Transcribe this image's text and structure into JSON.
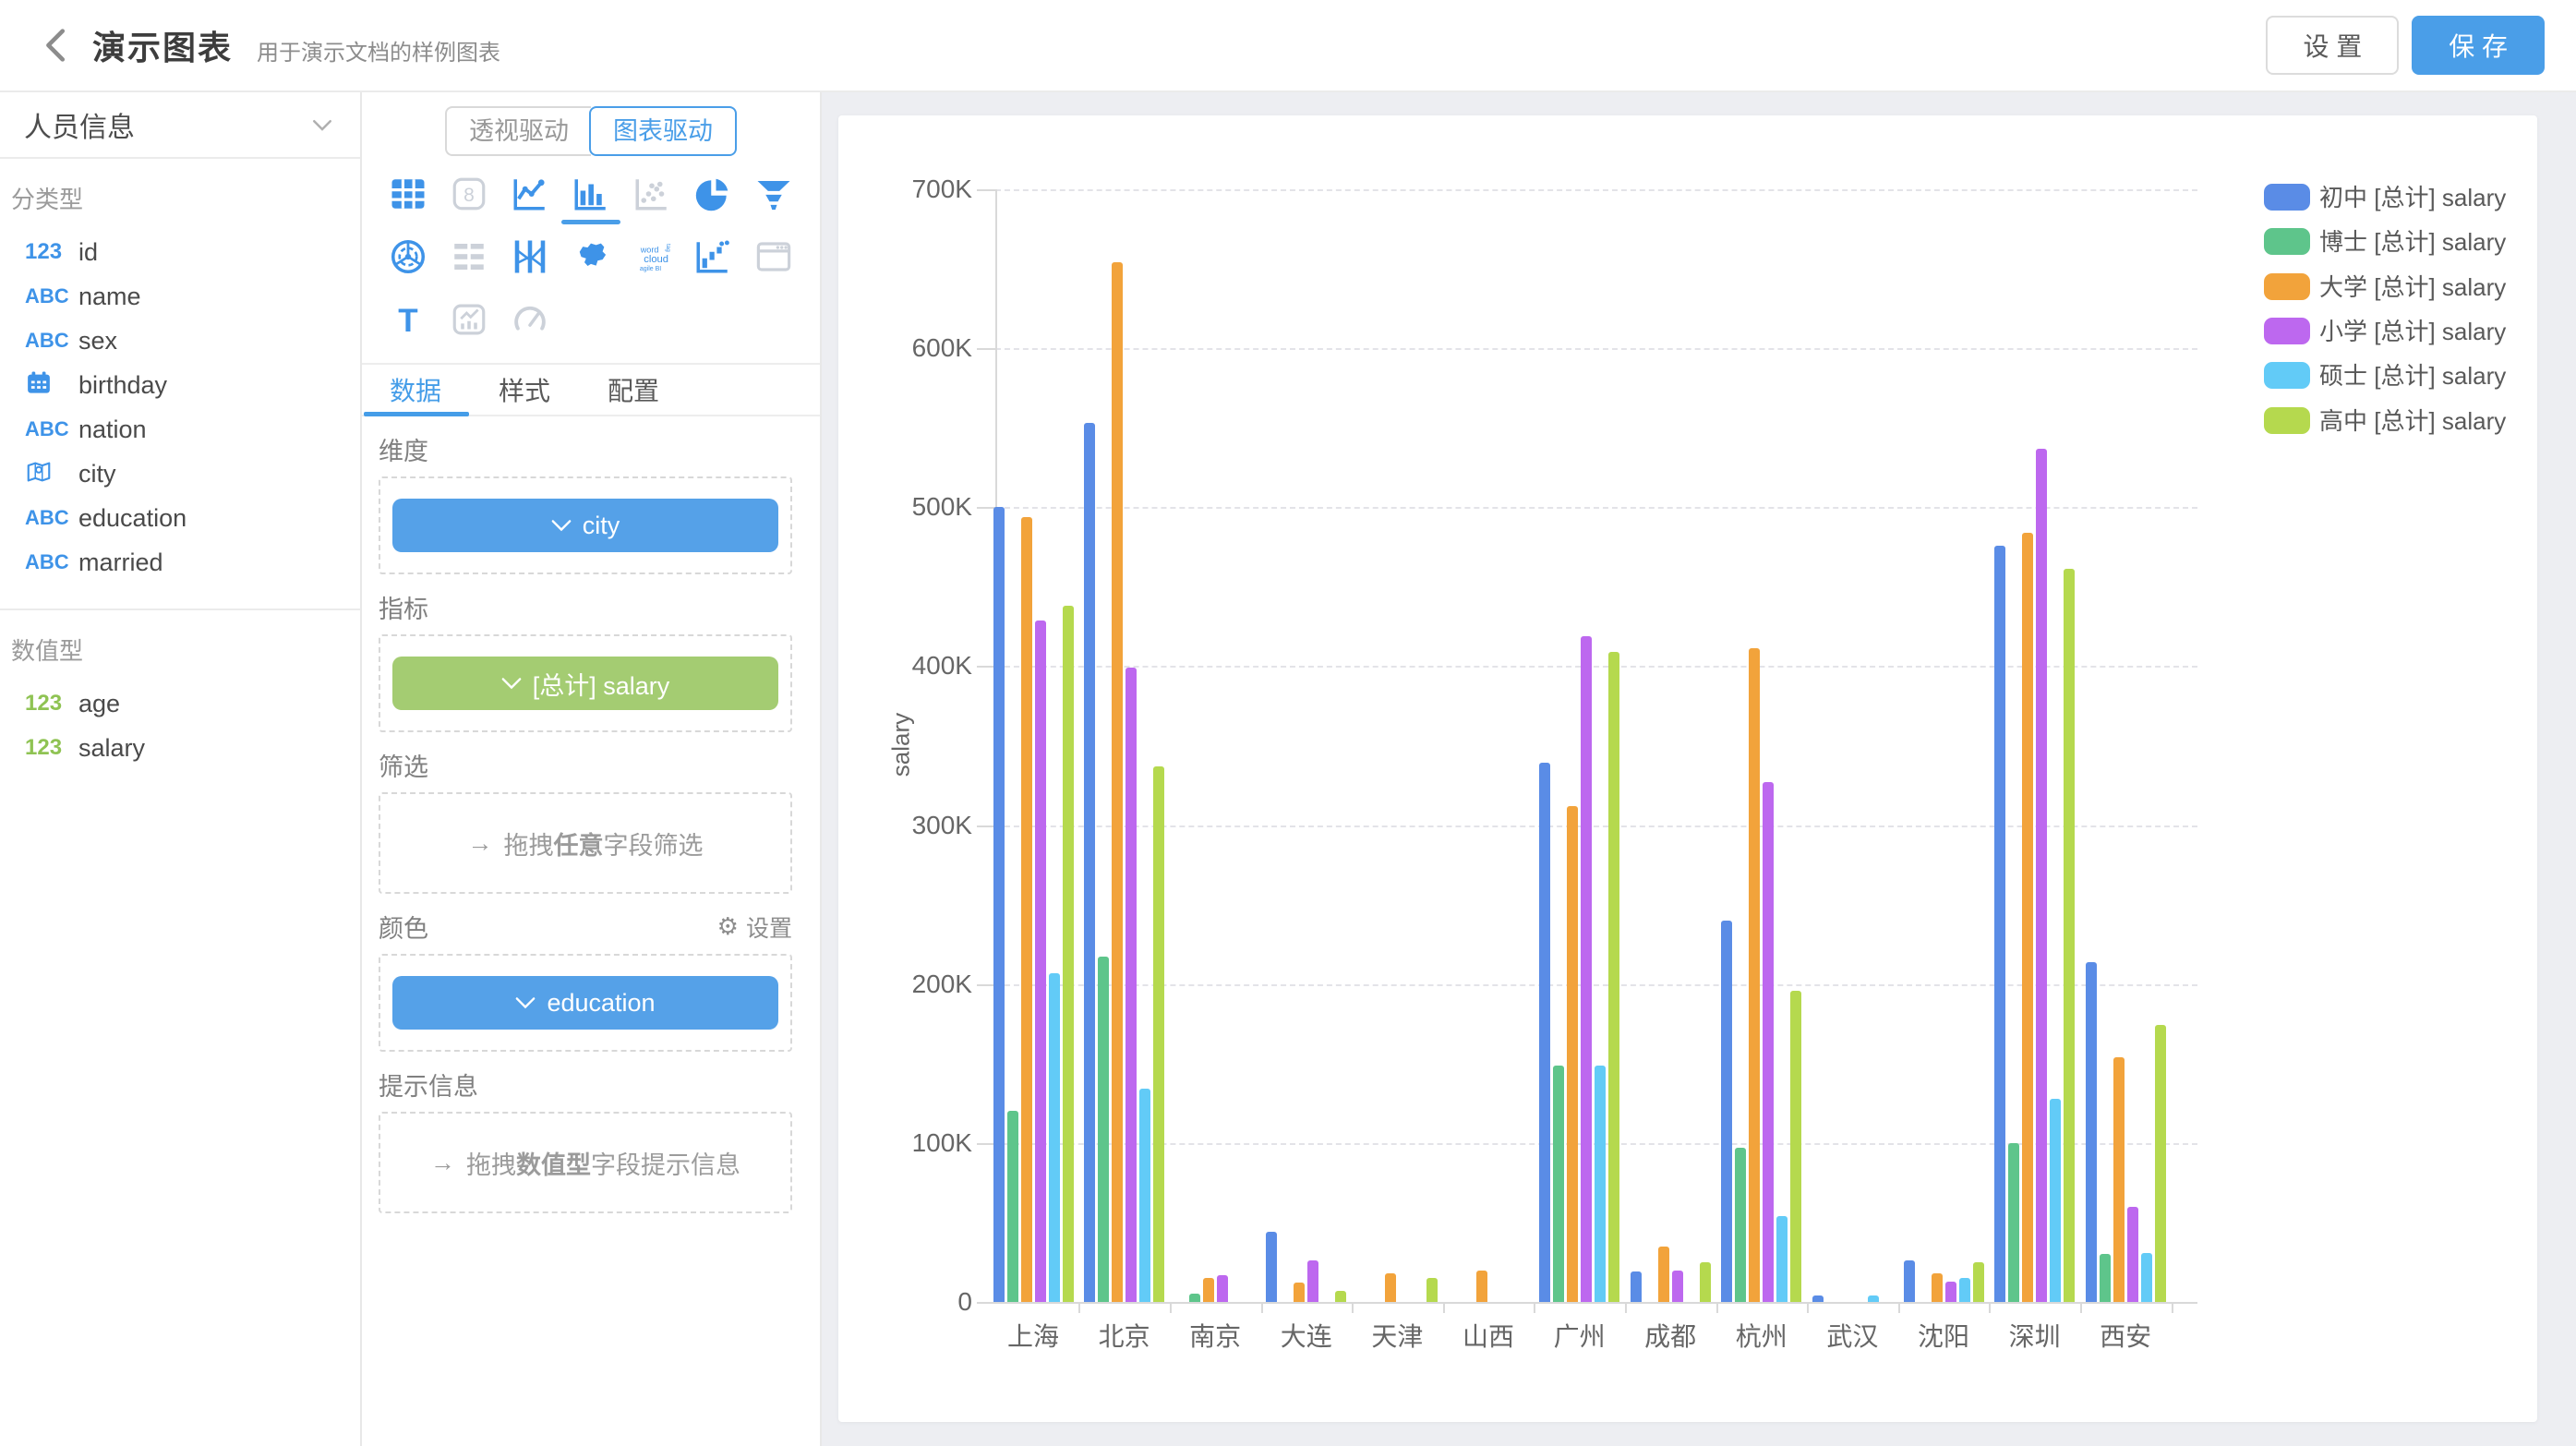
{
  "header": {
    "title": "演示图表",
    "subtitle": "用于演示文档的样例图表",
    "settings_label": "设 置",
    "save_label": "保 存",
    "accent_color": "#4a9ee8"
  },
  "sidebar": {
    "dataset_name": "人员信息",
    "categorical": {
      "title": "分类型",
      "fields": [
        {
          "badge": "123",
          "badge_style": "num-blue",
          "name": "id"
        },
        {
          "badge": "ABC",
          "badge_style": "abc",
          "name": "name"
        },
        {
          "badge": "ABC",
          "badge_style": "abc",
          "name": "sex"
        },
        {
          "badge": "calendar-icon",
          "badge_style": "icon",
          "name": "birthday"
        },
        {
          "badge": "ABC",
          "badge_style": "abc",
          "name": "nation"
        },
        {
          "badge": "map-pin-icon",
          "badge_style": "icon",
          "name": "city"
        },
        {
          "badge": "ABC",
          "badge_style": "abc",
          "name": "education"
        },
        {
          "badge": "ABC",
          "badge_style": "abc",
          "name": "married"
        }
      ]
    },
    "numeric": {
      "title": "数值型",
      "fields": [
        {
          "badge": "123",
          "badge_style": "num-green",
          "name": "age"
        },
        {
          "badge": "123",
          "badge_style": "num-green",
          "name": "salary"
        }
      ]
    }
  },
  "panel": {
    "driver_tabs": [
      {
        "label": "透视驱动",
        "active": false
      },
      {
        "label": "图表驱动",
        "active": true
      }
    ],
    "chart_types": [
      {
        "name": "table",
        "state": "active"
      },
      {
        "name": "indicator-card",
        "state": "disabled"
      },
      {
        "name": "line",
        "state": "active"
      },
      {
        "name": "bar",
        "state": "selected"
      },
      {
        "name": "scatter",
        "state": "disabled"
      },
      {
        "name": "pie",
        "state": "active"
      },
      {
        "name": "funnel",
        "state": "active"
      },
      {
        "name": "radar",
        "state": "active"
      },
      {
        "name": "gantt",
        "state": "disabled"
      },
      {
        "name": "parallel",
        "state": "active"
      },
      {
        "name": "china-map",
        "state": "active"
      },
      {
        "name": "word-cloud",
        "state": "active"
      },
      {
        "name": "waterfall",
        "state": "active"
      },
      {
        "name": "iframe",
        "state": "disabled"
      },
      {
        "name": "text",
        "state": "active"
      },
      {
        "name": "trend-card",
        "state": "disabled"
      },
      {
        "name": "gauge",
        "state": "disabled"
      }
    ],
    "tabs": [
      {
        "label": "数据",
        "active": true
      },
      {
        "label": "样式",
        "active": false
      },
      {
        "label": "配置",
        "active": false
      }
    ],
    "sections": {
      "dimension": {
        "label": "维度",
        "chips": [
          {
            "text": "city",
            "color": "blue"
          }
        ]
      },
      "metric": {
        "label": "指标",
        "chips": [
          {
            "text": "[总计] salary",
            "color": "green"
          }
        ]
      },
      "filter": {
        "label": "筛选",
        "placeholder_prefix": "拖拽",
        "placeholder_bold": "任意",
        "placeholder_suffix": "字段筛选"
      },
      "color": {
        "label": "颜色",
        "action": "设置",
        "chips": [
          {
            "text": "education",
            "color": "blue"
          }
        ]
      },
      "tooltip": {
        "label": "提示信息",
        "placeholder_prefix": "拖拽",
        "placeholder_bold": "数值型",
        "placeholder_suffix": "字段提示信息"
      }
    }
  },
  "chart_data": {
    "type": "bar",
    "title": "",
    "xlabel": "",
    "ylabel": "salary",
    "ylim": [
      0,
      700
    ],
    "y_unit": "K",
    "y_ticks": [
      "0",
      "100K",
      "200K",
      "300K",
      "400K",
      "500K",
      "600K",
      "700K"
    ],
    "grid": true,
    "legend_position": "top-right",
    "categories": [
      "上海",
      "北京",
      "南京",
      "大连",
      "天津",
      "山西",
      "广州",
      "成都",
      "杭州",
      "武汉",
      "沈阳",
      "深圳",
      "西安"
    ],
    "series": [
      {
        "name": "初中 [总计] salary",
        "color": "#5a8ce6",
        "values": [
          500,
          553,
          0,
          44,
          0,
          0,
          339,
          19,
          240,
          4,
          26,
          476,
          214
        ]
      },
      {
        "name": "博士 [总计] salary",
        "color": "#5ec58b",
        "values": [
          120,
          217,
          5,
          0,
          0,
          0,
          149,
          0,
          97,
          0,
          0,
          100,
          30
        ]
      },
      {
        "name": "大学 [总计] salary",
        "color": "#f2a33b",
        "values": [
          494,
          654,
          15,
          12,
          18,
          20,
          312,
          35,
          411,
          0,
          18,
          484,
          154
        ]
      },
      {
        "name": "小学 [总计] salary",
        "color": "#bd68ef",
        "values": [
          429,
          399,
          17,
          26,
          0,
          0,
          419,
          20,
          327,
          0,
          13,
          537,
          60
        ]
      },
      {
        "name": "硕士 [总计] salary",
        "color": "#62cbf7",
        "values": [
          207,
          134,
          0,
          0,
          0,
          0,
          149,
          0,
          54,
          4,
          15,
          128,
          31
        ]
      },
      {
        "name": "高中 [总计] salary",
        "color": "#b5d94e",
        "values": [
          438,
          337,
          0,
          7,
          15,
          0,
          409,
          25,
          196,
          0,
          25,
          461,
          174
        ]
      }
    ],
    "values_unit_note": "values are in thousands (K)"
  }
}
